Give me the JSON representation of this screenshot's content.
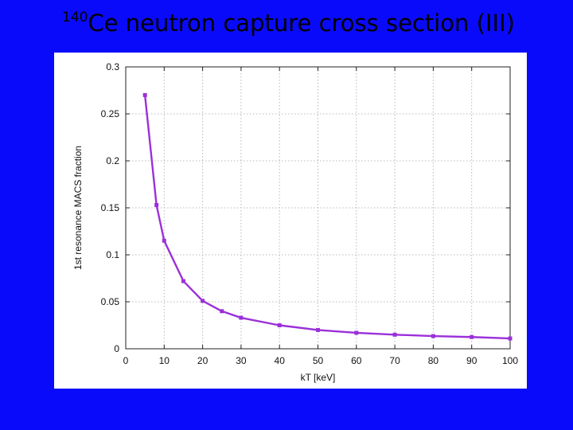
{
  "slide": {
    "title_sup": "140",
    "title_main": "Ce neutron capture cross section (III)"
  },
  "colors": {
    "background": "#0a0afa",
    "series": "#9b30d9",
    "grid": "#b8b8b8"
  },
  "chart_data": {
    "type": "line",
    "title": "",
    "xlabel": "kT [keV]",
    "ylabel": "1st resonance MACS fraction",
    "xlim": [
      0,
      100
    ],
    "ylim": [
      0,
      0.3
    ],
    "xticks": [
      0,
      10,
      20,
      30,
      40,
      50,
      60,
      70,
      80,
      90,
      100
    ],
    "yticks": [
      0,
      0.05,
      0.1,
      0.15,
      0.2,
      0.25,
      0.3
    ],
    "xtick_labels": [
      "0",
      "10",
      "20",
      "30",
      "40",
      "50",
      "60",
      "70",
      "80",
      "90",
      "100"
    ],
    "ytick_labels": [
      "0",
      "0.05",
      "0.1",
      "0.15",
      "0.2",
      "0.25",
      "0.3"
    ],
    "grid": true,
    "legend": "none",
    "series": [
      {
        "x": [
          5,
          8,
          10,
          15,
          20,
          25,
          30,
          40,
          50,
          60,
          70,
          80,
          90,
          100
        ],
        "y": [
          0.27,
          0.153,
          0.115,
          0.072,
          0.051,
          0.04,
          0.033,
          0.025,
          0.02,
          0.017,
          0.015,
          0.0135,
          0.0125,
          0.011
        ]
      }
    ]
  }
}
